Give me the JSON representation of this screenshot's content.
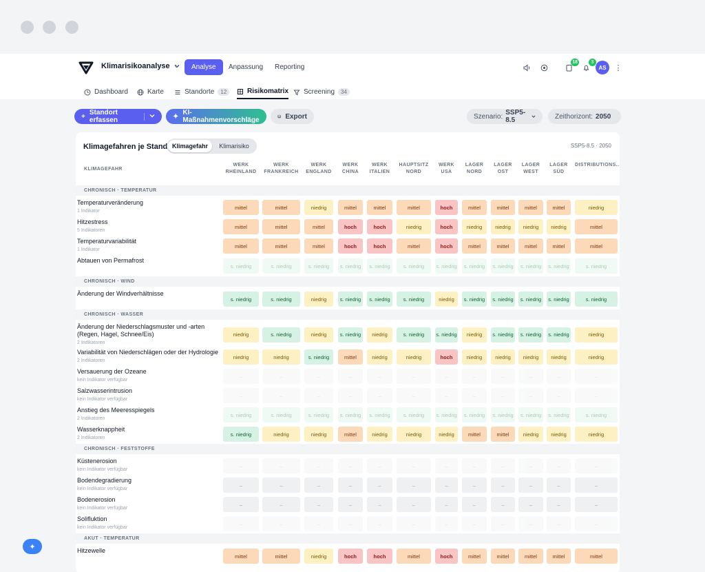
{
  "app": {
    "project": "Klimarisikoanalyse",
    "nav": [
      {
        "label": "Analyse",
        "active": true
      },
      {
        "label": "Anpassung",
        "active": false
      },
      {
        "label": "Reporting",
        "active": false
      }
    ],
    "badges": {
      "docs": "18",
      "bell": "3"
    },
    "user_initials": "AS"
  },
  "subnav": [
    {
      "label": "Dashboard",
      "icon": "clock-icon",
      "count": ""
    },
    {
      "label": "Karte",
      "icon": "globe-icon",
      "count": ""
    },
    {
      "label": "Standorte",
      "icon": "list-icon",
      "count": "12"
    },
    {
      "label": "Risikomatrix",
      "icon": "grid-icon",
      "count": "",
      "active": true
    },
    {
      "label": "Screening",
      "icon": "filter-icon",
      "count": "34"
    }
  ],
  "toolbar": {
    "add_site": "Standort erfassen",
    "ai": "KI-Maßnahmenvorschläge",
    "export": "Export",
    "scenario_label": "Szenario:",
    "scenario_value": "SSP5-8.5",
    "horizon_label": "Zeithorizont:",
    "horizon_value": "2050"
  },
  "matrix": {
    "title": "Klimagefahren je Standort",
    "toggle": [
      "Klimagefahr",
      "Klimarisiko"
    ],
    "meta": "SSP5-8.5 · 2050",
    "first_col": "KLIMAGEFAHR",
    "columns": [
      "WERK RHEINLAND",
      "WERK FRANKREICH",
      "WERK ENGLAND",
      "WERK CHINA",
      "WERK ITALIEN",
      "HAUPTSITZ NORD",
      "WERK USA",
      "LAGER NORD",
      "LAGER OST",
      "LAGER WEST",
      "LAGER SÜD",
      "DISTRIBUTIONS..."
    ],
    "groups": [
      {
        "label": "CHRONISCH · TEMPERATUR",
        "rows": [
          {
            "name": "Temperaturveränderung",
            "sub": "1 Indikator",
            "cells": [
              "mittel",
              "mittel",
              "niedrig",
              "mittel",
              "mittel",
              "mittel",
              "hoch",
              "mittel",
              "mittel",
              "mittel",
              "mittel",
              "niedrig"
            ]
          },
          {
            "name": "Hitzestress",
            "sub": "5 Indikatoren",
            "cells": [
              "mittel",
              "mittel",
              "mittel",
              "hoch",
              "hoch",
              "niedrig",
              "hoch",
              "niedrig",
              "niedrig",
              "niedrig",
              "niedrig",
              "mittel"
            ]
          },
          {
            "name": "Temperaturvariabilität",
            "sub": "1 Indikator",
            "cells": [
              "mittel",
              "mittel",
              "mittel",
              "hoch",
              "hoch",
              "mittel",
              "hoch",
              "mittel",
              "mittel",
              "mittel",
              "mittel",
              "mittel"
            ]
          },
          {
            "name": "Abtauen von Permafrost",
            "sub": "",
            "faded": true,
            "cells": [
              "s. niedrig",
              "s. niedrig",
              "s. niedrig",
              "s. niedrig",
              "s. niedrig",
              "s. niedrig",
              "s. niedrig",
              "s. niedrig",
              "s. niedrig",
              "s. niedrig",
              "s. niedrig",
              "s. niedrig"
            ]
          }
        ]
      },
      {
        "label": "CHRONISCH · WIND",
        "rows": [
          {
            "name": "Änderung der Windverhältnisse",
            "sub": "",
            "cells": [
              "s. niedrig",
              "s. niedrig",
              "niedrig",
              "s. niedrig",
              "s. niedrig",
              "s. niedrig",
              "niedrig",
              "s. niedrig",
              "s. niedrig",
              "s. niedrig",
              "s. niedrig",
              "s. niedrig"
            ]
          }
        ]
      },
      {
        "label": "CHRONISCH · WASSER",
        "rows": [
          {
            "name": "Änderung der Niederschlagsmuster und -arten (Regen, Hagel, Schnee/Eis)",
            "sub": "2 Indikatoren",
            "cells": [
              "niedrig",
              "s. niedrig",
              "niedrig",
              "s. niedrig",
              "niedrig",
              "s. niedrig",
              "s. niedrig",
              "niedrig",
              "s. niedrig",
              "s. niedrig",
              "s. niedrig",
              "niedrig"
            ]
          },
          {
            "name": "Variabilität von Niederschlägen oder der Hydrologie",
            "sub": "2 Indikatoren",
            "cells": [
              "niedrig",
              "niedrig",
              "s. niedrig",
              "mittel",
              "niedrig",
              "niedrig",
              "hoch",
              "niedrig",
              "niedrig",
              "niedrig",
              "niedrig",
              "niedrig"
            ]
          },
          {
            "name": "Versauerung der Ozeane",
            "sub": "kein Indikator verfügbar",
            "faded": true,
            "cells": [
              "–",
              "–",
              "–",
              "–",
              "–",
              "–",
              "–",
              "–",
              "–",
              "–",
              "–",
              "–"
            ]
          },
          {
            "name": "Salzwasserintrusion",
            "sub": "kein Indikator verfügbar",
            "faded": true,
            "cells": [
              "–",
              "–",
              "–",
              "–",
              "–",
              "–",
              "–",
              "–",
              "–",
              "–",
              "–",
              "–"
            ]
          },
          {
            "name": "Anstieg des Meeresspiegels",
            "sub": "2 Indikatoren",
            "faded": true,
            "cells": [
              "s. niedrig",
              "s. niedrig",
              "s. niedrig",
              "s. niedrig",
              "s. niedrig",
              "s. niedrig",
              "s. niedrig",
              "s. niedrig",
              "s. niedrig",
              "s. niedrig",
              "s. niedrig",
              "s. niedrig"
            ]
          },
          {
            "name": "Wasserknappheit",
            "sub": "2 Indikatoren",
            "cells": [
              "s. niedrig",
              "niedrig",
              "niedrig",
              "mittel",
              "niedrig",
              "niedrig",
              "niedrig",
              "mittel",
              "mittel",
              "niedrig",
              "niedrig",
              "niedrig"
            ]
          }
        ]
      },
      {
        "label": "CHRONISCH · FESTSTOFFE",
        "rows": [
          {
            "name": "Küstenerosion",
            "sub": "kein Indikator verfügbar",
            "faded": true,
            "cells": [
              "–",
              "–",
              "–",
              "–",
              "–",
              "–",
              "–",
              "–",
              "–",
              "–",
              "–",
              "–"
            ]
          },
          {
            "name": "Bodendegradierung",
            "sub": "kein Indikator verfügbar",
            "cells": [
              "–",
              "–",
              "–",
              "–",
              "–",
              "–",
              "–",
              "–",
              "–",
              "–",
              "–",
              "–"
            ]
          },
          {
            "name": "Bodenerosion",
            "sub": "kein Indikator verfügbar",
            "cells": [
              "–",
              "–",
              "–",
              "–",
              "–",
              "–",
              "–",
              "–",
              "–",
              "–",
              "–",
              "–"
            ]
          },
          {
            "name": "Solifluktion",
            "sub": "kein Indikator verfügbar",
            "faded": true,
            "cells": [
              "–",
              "–",
              "–",
              "–",
              "–",
              "–",
              "–",
              "–",
              "–",
              "–",
              "–",
              "–"
            ]
          }
        ]
      },
      {
        "label": "AKUT · TEMPERATUR",
        "rows": [
          {
            "name": "Hitzewelle",
            "sub": "",
            "cells": [
              "mittel",
              "mittel",
              "niedrig",
              "hoch",
              "hoch",
              "mittel",
              "hoch",
              "mittel",
              "mittel",
              "mittel",
              "mittel",
              "mittel"
            ]
          }
        ]
      }
    ]
  }
}
